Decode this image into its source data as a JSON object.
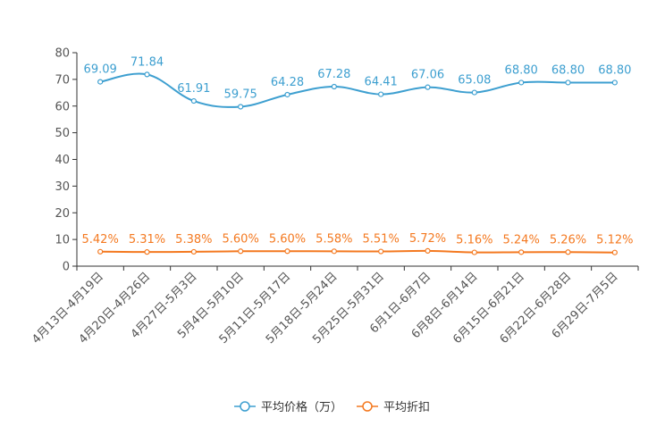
{
  "chart_data": {
    "type": "line",
    "categories": [
      "4月13日-4月19日",
      "4月20日-4月26日",
      "4月27日-5月3日",
      "5月4日-5月10日",
      "5月11日-5月17日",
      "5月18日-5月24日",
      "5月25日-5月31日",
      "6月1日-6月7日",
      "6月8日-6月14日",
      "6月15日-6月21日",
      "6月22日-6月28日",
      "6月29日-7月5日"
    ],
    "series": [
      {
        "name": "平均价格（万）",
        "color": "#3d9fd0",
        "values": [
          69.09,
          71.84,
          61.91,
          59.75,
          64.28,
          67.28,
          64.41,
          67.06,
          65.08,
          68.8,
          68.8,
          68.8
        ],
        "labels": [
          "69.09",
          "71.84",
          "61.91",
          "59.75",
          "64.28",
          "67.28",
          "64.41",
          "67.06",
          "65.08",
          "68.80",
          "68.80",
          "68.80"
        ]
      },
      {
        "name": "平均折扣",
        "color": "#f47920",
        "values": [
          5.42,
          5.31,
          5.38,
          5.6,
          5.6,
          5.58,
          5.51,
          5.72,
          5.16,
          5.24,
          5.26,
          5.12
        ],
        "labels": [
          "5.42%",
          "5.31%",
          "5.38%",
          "5.60%",
          "5.60%",
          "5.58%",
          "5.51%",
          "5.72%",
          "5.16%",
          "5.24%",
          "5.26%",
          "5.12%"
        ]
      }
    ],
    "yticks": [
      "0",
      "10",
      "20",
      "30",
      "40",
      "50",
      "60",
      "70",
      "80"
    ],
    "ylim": [
      0,
      80
    ],
    "title": "",
    "xlabel": "",
    "ylabel": "",
    "grid": false,
    "legend": "bottom-center"
  }
}
